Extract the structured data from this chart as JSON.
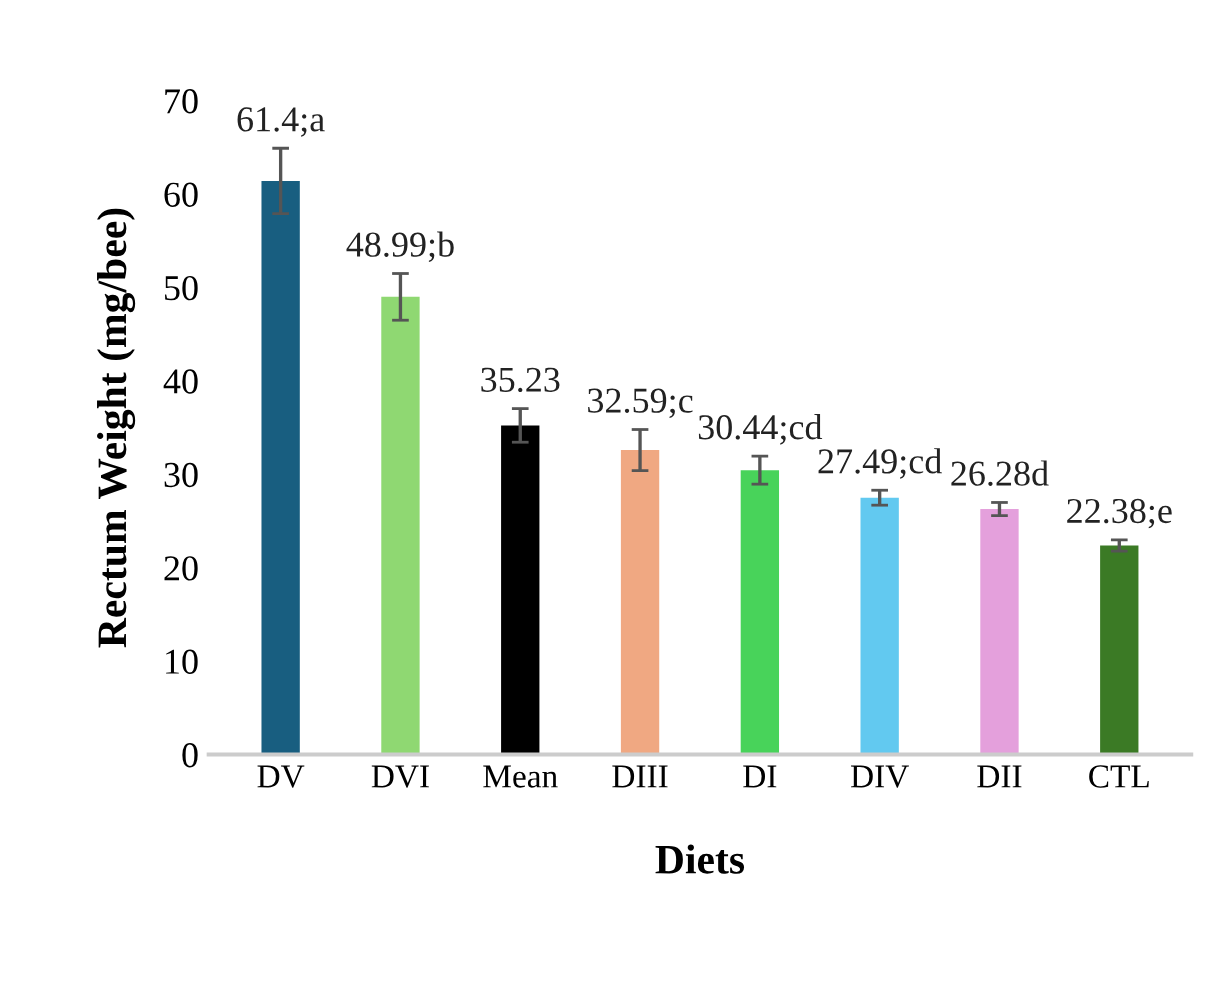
{
  "chart_data": {
    "type": "bar",
    "xlabel": "Diets",
    "ylabel": "Rectum Weight (mg/bee)",
    "categories": [
      "DV",
      "DVI",
      "Mean",
      "DIII",
      "DI",
      "DIV",
      "DII",
      "CTL"
    ],
    "values": [
      61.4,
      48.99,
      35.23,
      32.59,
      30.44,
      27.49,
      26.28,
      22.38
    ],
    "colors": [
      "#185e80",
      "#8fd872",
      "#000000",
      "#f0a882",
      "#48d35a",
      "#62c9f0",
      "#e4a0dc",
      "#3b7a25"
    ],
    "errors": [
      3.5,
      2.5,
      1.8,
      2.2,
      1.5,
      0.8,
      0.7,
      0.6
    ],
    "value_labels": [
      "61.4;a",
      "48.99;b",
      "35.23",
      "32.59;c",
      "30.44;cd",
      "27.49;cd",
      "26.28d",
      "22.38;e"
    ],
    "ylim": [
      0,
      70
    ],
    "yticks": [
      0,
      10,
      20,
      30,
      40,
      50,
      60,
      70
    ],
    "grid": false
  }
}
